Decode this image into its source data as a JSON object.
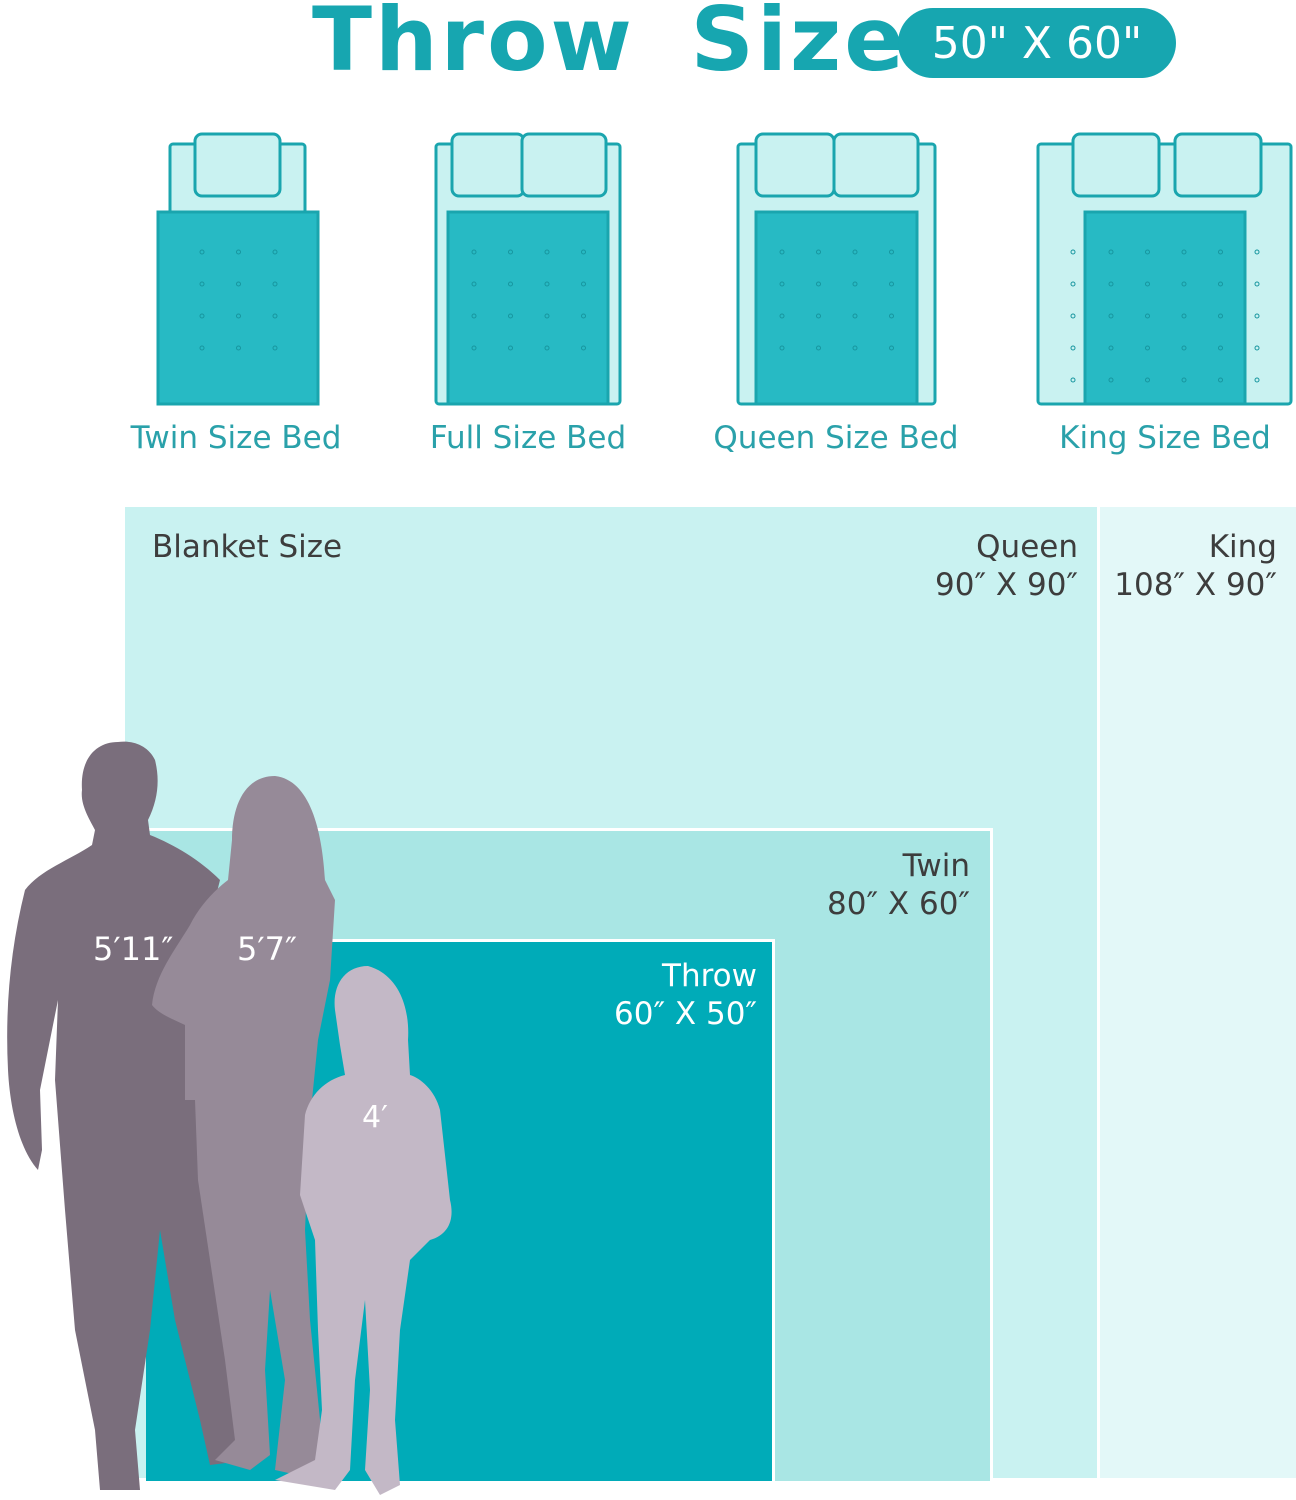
{
  "header": {
    "title": "Throw Size",
    "badge": "50\" X 60\""
  },
  "beds": [
    {
      "label": "Twin Size Bed",
      "pillows": 1
    },
    {
      "label": "Full Size Bed",
      "pillows": 2
    },
    {
      "label": "Queen Size Bed",
      "pillows": 2
    },
    {
      "label": "King Size Bed",
      "pillows": 2
    }
  ],
  "blankets": {
    "heading": "Blanket Size",
    "queen": {
      "name": "Queen",
      "dims": "90″ X 90″"
    },
    "king": {
      "name": "King",
      "dims": "108″ X 90″"
    },
    "twin": {
      "name": "Twin",
      "dims": "80″ X 60″"
    },
    "throw": {
      "name": "Throw",
      "dims": "60″ X 50″"
    }
  },
  "people": [
    {
      "height": "5′11″"
    },
    {
      "height": "5′7″"
    },
    {
      "height": "4′"
    }
  ],
  "colors": {
    "accent": "#17a6b0",
    "king": "#e3f8f8",
    "queen": "#c9f2f1",
    "twin": "#a9e6e4",
    "throw": "#00abb8",
    "man": "#7a6e7c",
    "woman": "#968a98",
    "girl": "#c3b8c6"
  }
}
